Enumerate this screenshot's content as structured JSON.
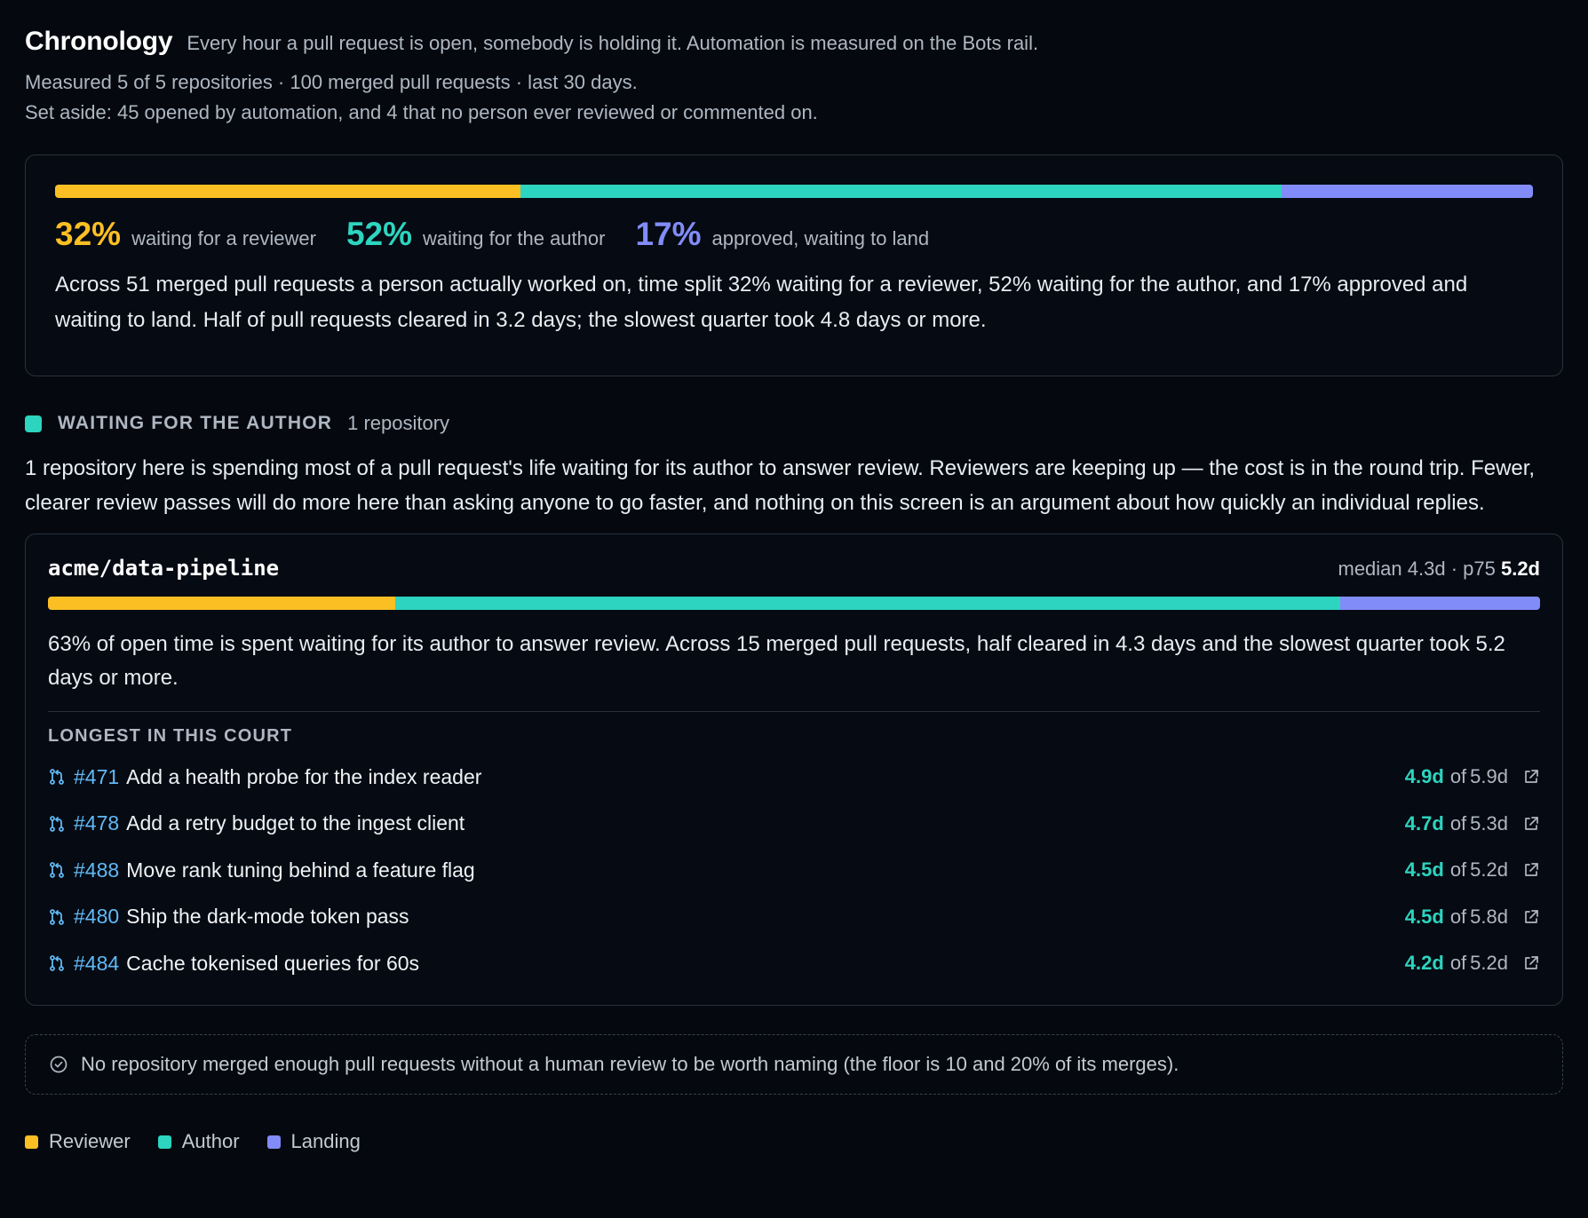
{
  "header": {
    "title": "Chronology",
    "subtitle": "Every hour a pull request is open, somebody is holding it. Automation is measured on the Bots rail.",
    "measured": "Measured 5 of 5 repositories · 100 merged pull requests · last 30 days.",
    "set_aside": "Set aside: 45 opened by automation, and 4 that no person ever reviewed or commented on."
  },
  "colors": {
    "reviewer": "#fbbf24",
    "author": "#2dd4bf",
    "landing": "#818cf8",
    "link": "#60b9f6"
  },
  "summary": {
    "split": {
      "reviewer": 0.315,
      "author": 0.515,
      "landing": 0.17
    },
    "stats": [
      {
        "key": "reviewer",
        "value": "32%",
        "label": "waiting for a reviewer"
      },
      {
        "key": "author",
        "value": "52%",
        "label": "waiting for the author"
      },
      {
        "key": "landing",
        "value": "17%",
        "label": "approved, waiting to land"
      }
    ],
    "text": "Across 51 merged pull requests a person actually worked on, time split 32% waiting for a reviewer, 52% waiting for the author, and 17% approved and waiting to land. Half of pull requests cleared in 3.2 days; the slowest quarter took 4.8 days or more."
  },
  "section": {
    "title": "WAITING FOR THE AUTHOR",
    "count": "1 repository",
    "body": "1 repository here is spending most of a pull request's life waiting for its author to answer review. Reviewers are keeping up — the cost is in the round trip. Fewer, clearer review passes will do more here than asking anyone to go faster, and nothing on this screen is an argument about how quickly an individual replies."
  },
  "repo": {
    "name": "acme/data-pipeline",
    "median_label": "median 4.3d · p75",
    "p75": "5.2d",
    "split": {
      "reviewer": 0.233,
      "author": 0.633,
      "landing": 0.134
    },
    "text": "63% of open time is spent waiting for its author to answer review. Across 15 merged pull requests, half cleared in 4.3 days and the slowest quarter took 5.2 days or more.",
    "list_title": "LONGEST IN THIS COURT",
    "prs": [
      {
        "number": "#471",
        "title": "Add a health probe for the index reader",
        "waited": "4.9d",
        "of": "of",
        "total": "5.9d"
      },
      {
        "number": "#478",
        "title": "Add a retry budget to the ingest client",
        "waited": "4.7d",
        "of": "of",
        "total": "5.3d"
      },
      {
        "number": "#488",
        "title": "Move rank tuning behind a feature flag",
        "waited": "4.5d",
        "of": "of",
        "total": "5.2d"
      },
      {
        "number": "#480",
        "title": "Ship the dark-mode token pass",
        "waited": "4.5d",
        "of": "of",
        "total": "5.8d"
      },
      {
        "number": "#484",
        "title": "Cache tokenised queries for 60s",
        "waited": "4.2d",
        "of": "of",
        "total": "5.2d"
      }
    ]
  },
  "note": {
    "icon": "check-circle-icon",
    "text": "No repository merged enough pull requests without a human review to be worth naming (the floor is 10 and 20% of its merges)."
  },
  "legend": [
    {
      "key": "reviewer",
      "label": "Reviewer"
    },
    {
      "key": "author",
      "label": "Author"
    },
    {
      "key": "landing",
      "label": "Landing"
    }
  ]
}
